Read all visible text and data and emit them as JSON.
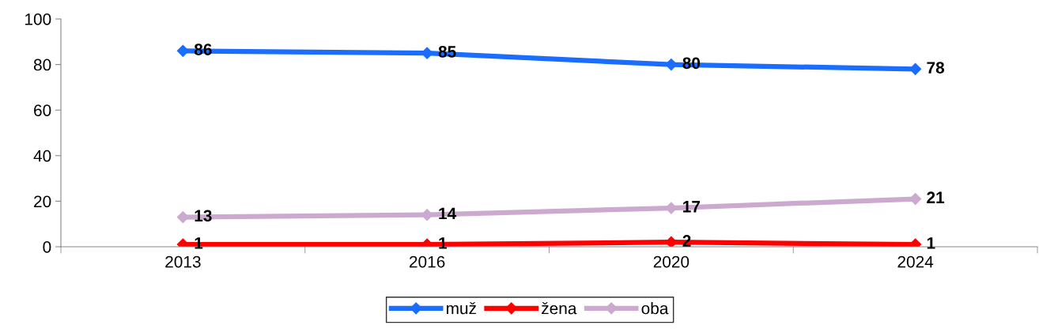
{
  "chart_data": {
    "type": "line",
    "categories": [
      "2013",
      "2016",
      "2020",
      "2024"
    ],
    "series": [
      {
        "name": "muž",
        "color": "#1a6dff",
        "values": [
          86,
          85,
          80,
          78
        ]
      },
      {
        "name": "žena",
        "color": "#ff0000",
        "values": [
          1,
          1,
          2,
          1
        ]
      },
      {
        "name": "oba",
        "color": "#ccaad0",
        "values": [
          13,
          14,
          17,
          21
        ]
      }
    ],
    "ylim": [
      0,
      100
    ],
    "yticks": [
      0,
      20,
      40,
      60,
      80,
      100
    ],
    "grid": false,
    "legend": "bottom",
    "marker": "diamond",
    "line_style": "solid",
    "data_labels": true
  }
}
